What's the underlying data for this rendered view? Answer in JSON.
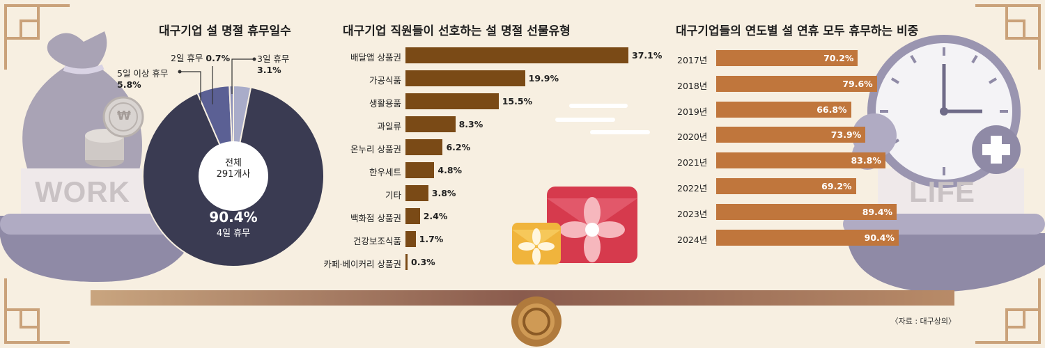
{
  "chart_data": [
    {
      "type": "pie",
      "title": "대구기업 설 명절 휴무일수",
      "center_label": "전체",
      "center_value": "291개사",
      "slices": [
        {
          "name": "4일 휴무",
          "value": 90.4,
          "label": "90.4%",
          "color": "#3a3b52"
        },
        {
          "name": "5일 이상 휴무",
          "value": 5.8,
          "label": "5.8%",
          "color": "#5b6094"
        },
        {
          "name": "2일 휴무",
          "value": 0.7,
          "label": "0.7%",
          "color": "#8b8fb8"
        },
        {
          "name": "3일 휴무",
          "value": 3.1,
          "label": "3.1%",
          "color": "#a9acc9"
        }
      ]
    },
    {
      "type": "bar",
      "title": "대구기업 직원들이 선호하는 설 명절 선물유형",
      "categories": [
        "배달앱 상품권",
        "가공식품",
        "생활용품",
        "과일류",
        "온누리 상품권",
        "한우세트",
        "기타",
        "백화점 상품권",
        "건강보조식품",
        "카페·베이커리 상품권"
      ],
      "values": [
        37.1,
        19.9,
        15.5,
        8.3,
        6.2,
        4.8,
        3.8,
        2.4,
        1.7,
        0.3
      ],
      "labels": [
        "37.1%",
        "19.9%",
        "15.5%",
        "8.3%",
        "6.2%",
        "4.8%",
        "3.8%",
        "2.4%",
        "1.7%",
        "0.3%"
      ],
      "bar_color": "#7a4a16"
    },
    {
      "type": "bar",
      "title": "대구기업들의 연도별 설 연휴 모두 휴무하는 비중",
      "categories": [
        "2017년",
        "2018년",
        "2019년",
        "2020년",
        "2021년",
        "2022년",
        "2023년",
        "2024년"
      ],
      "values": [
        70.2,
        79.6,
        66.8,
        73.9,
        83.8,
        69.2,
        89.4,
        90.4
      ],
      "labels": [
        "70.2%",
        "79.6%",
        "66.8%",
        "73.9%",
        "83.8%",
        "69.2%",
        "89.4%",
        "90.4%"
      ],
      "bar_color": "#c0763c"
    }
  ],
  "decor": {
    "left_word": "WORK",
    "right_word": "LIFE",
    "coin_symbol": "₩",
    "money_bag_icon": "money-bag-icon",
    "clock_icon": "clock-icon",
    "gift_icon": "gift-box-icon"
  },
  "source": "〈자료 : 대구상의〉"
}
